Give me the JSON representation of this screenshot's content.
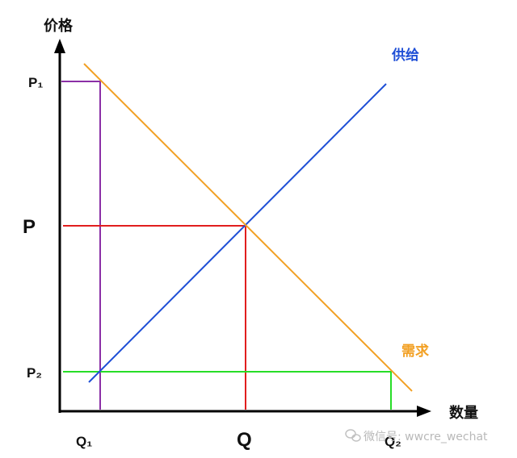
{
  "chart_data": {
    "type": "line",
    "xlabel": "数量",
    "ylabel": "价格",
    "x_ticks": [
      "Q₁",
      "Q",
      "Q₂"
    ],
    "y_ticks": [
      "P₁",
      "P",
      "P₂"
    ],
    "series": [
      {
        "name": "供给",
        "color": "#1f4fd6",
        "points": [
          [
            "Q₁",
            "P₂"
          ],
          [
            "Q",
            "P"
          ]
        ]
      },
      {
        "name": "需求",
        "color": "#f2a023",
        "points": [
          [
            "Q₁",
            "P₁"
          ],
          [
            "Q",
            "P"
          ],
          [
            "Q₂",
            "P₂"
          ]
        ]
      }
    ],
    "reference_lines": [
      {
        "kind": "price-ceiling-floor",
        "from": [
          "Q₁",
          "P₁"
        ],
        "color": "#8b2fa6"
      },
      {
        "kind": "equilibrium",
        "from": [
          "Q",
          "P"
        ],
        "color": "#e11e1e"
      },
      {
        "kind": "low-price",
        "from": [
          "Q₂",
          "P₂"
        ],
        "color": "#27dd27"
      }
    ],
    "grid": false
  },
  "watermark": {
    "icon": "wechat-icon",
    "text": "微信号: wwcre_wechat"
  }
}
